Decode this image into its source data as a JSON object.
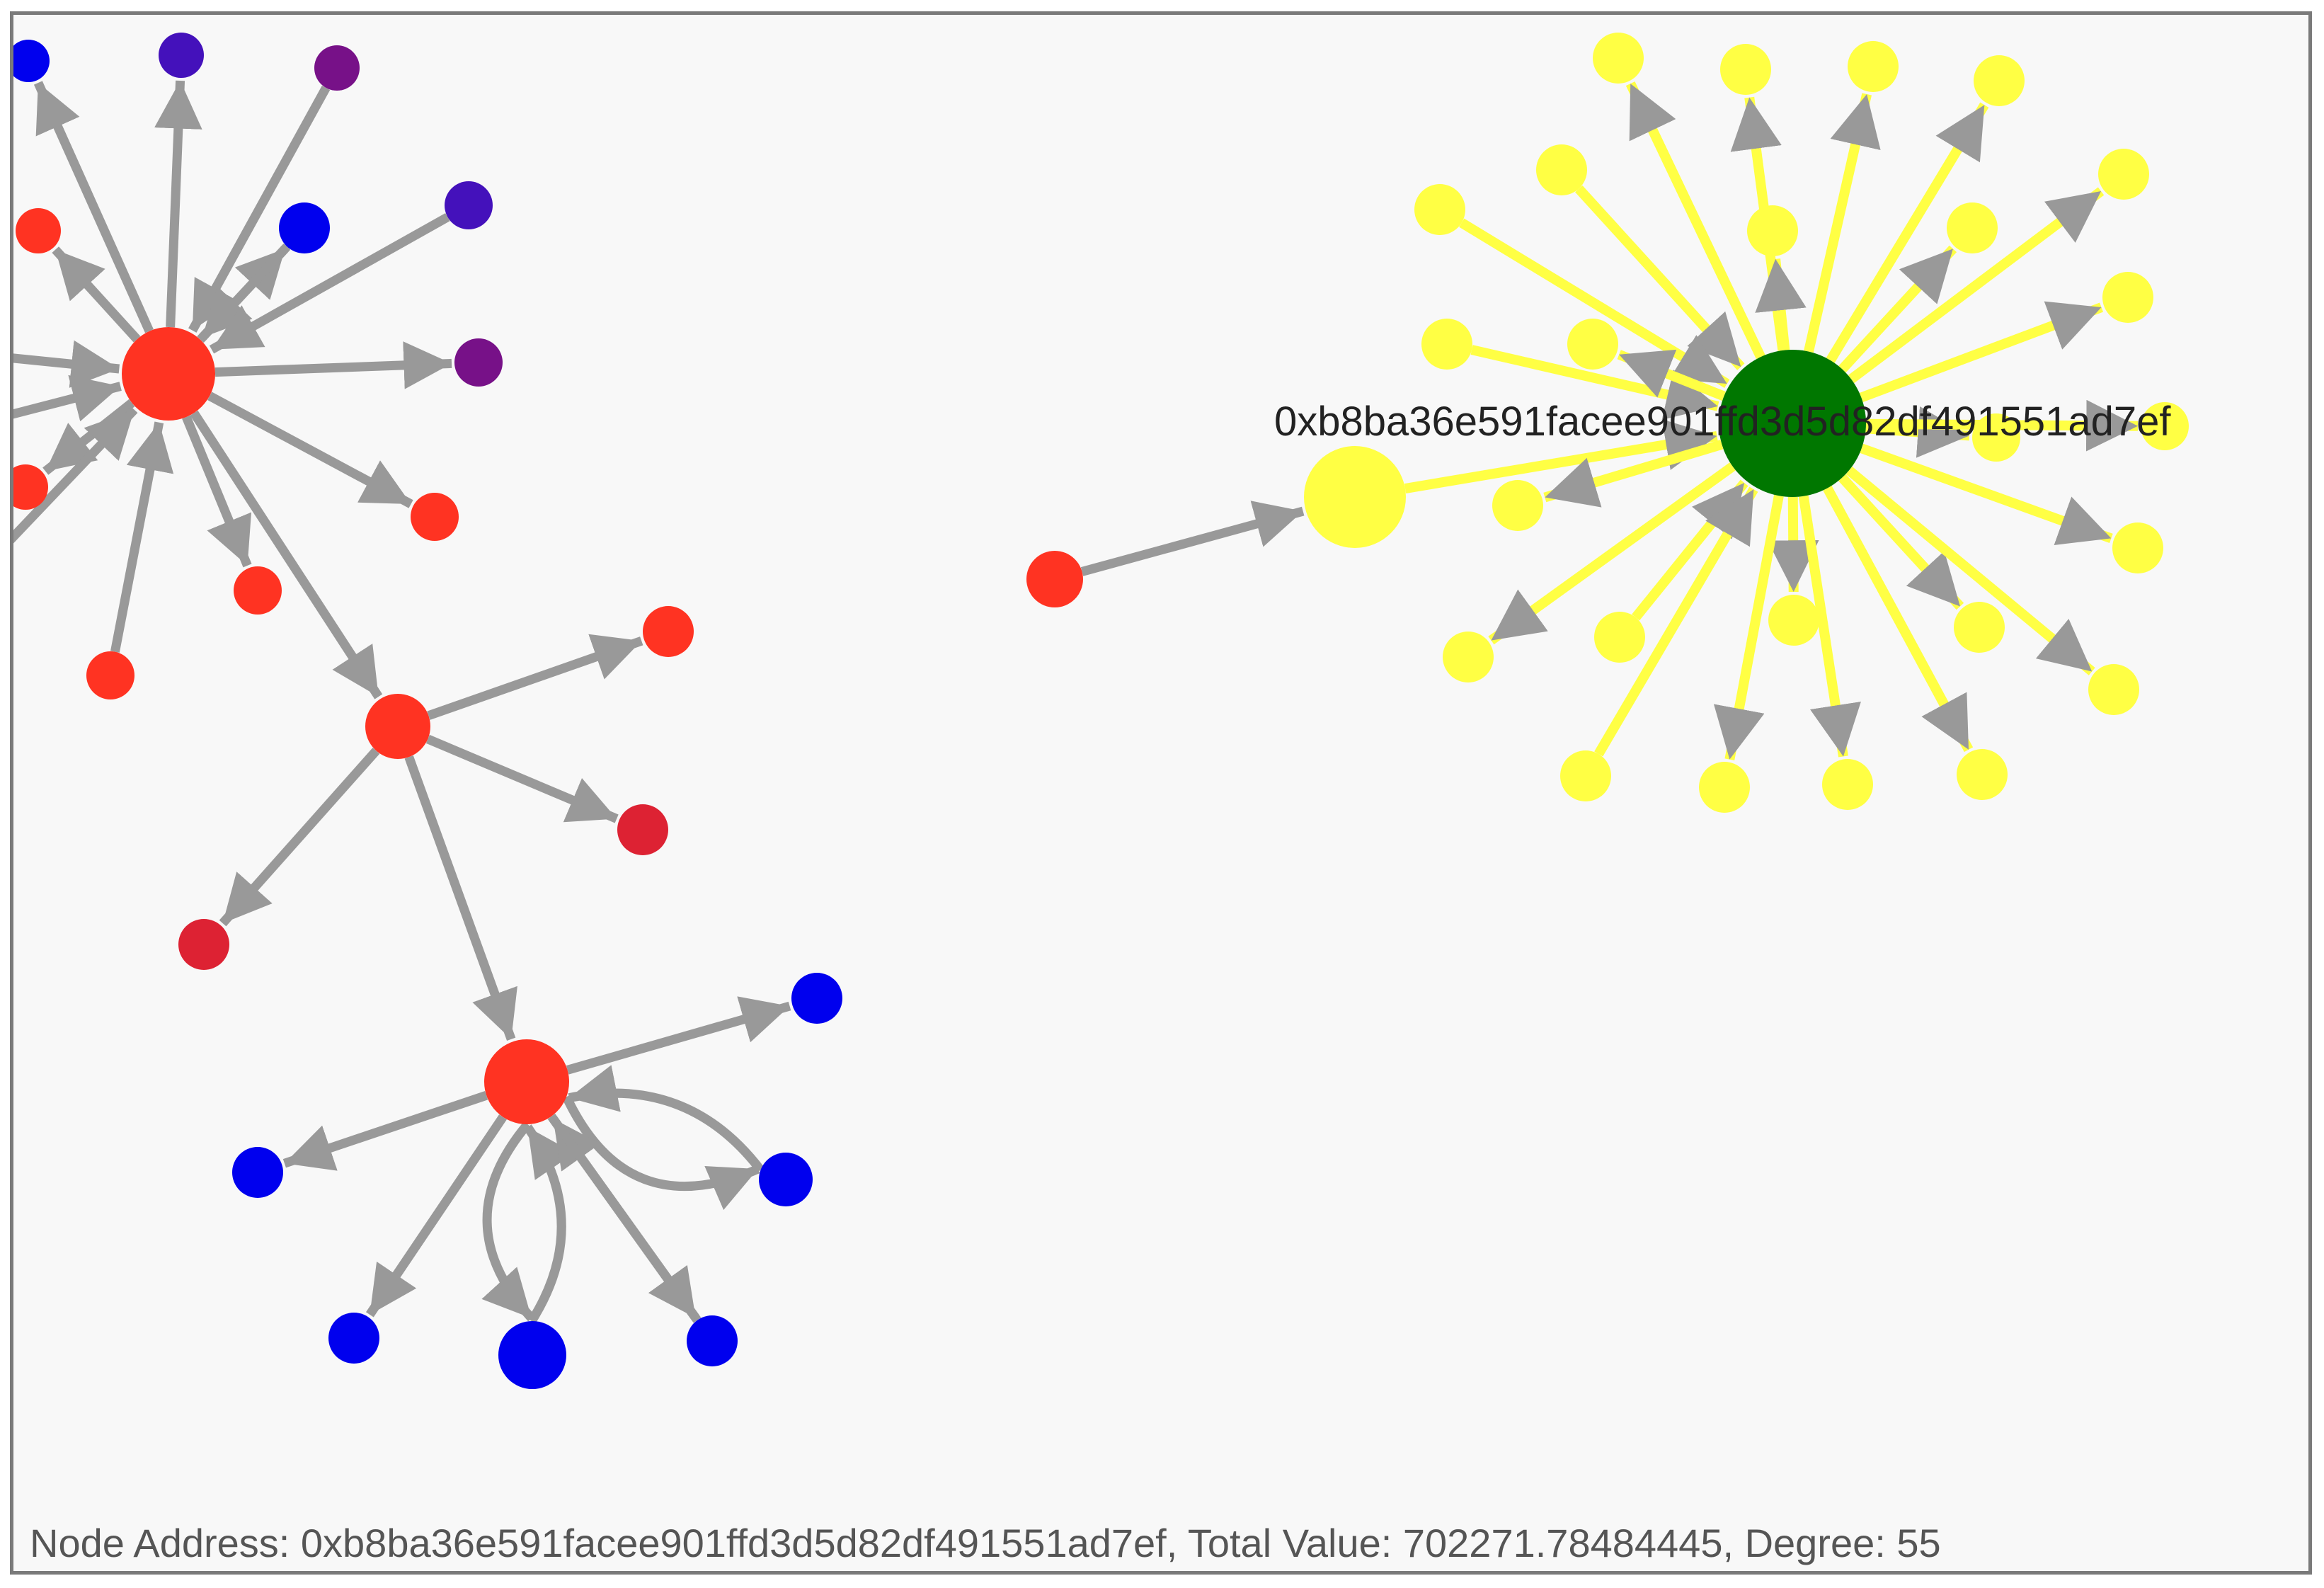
{
  "colors": {
    "edge_gray": "#999999",
    "edge_yellow": "#ffff44",
    "arrowhead": "#999999",
    "node_red": "#ff3322",
    "node_crimson": "#dd2233",
    "node_blue": "#0000ee",
    "node_indigo": "#4411bb",
    "node_purple": "#771188",
    "node_yellow": "#ffff44",
    "node_green": "#007700",
    "background": "#f8f8f8",
    "border": "#7a7a7a",
    "label_text": "#222222"
  },
  "graph": {
    "selected_node_label": "0xb8ba36e591facee901ffd3d5d82df491551ad7ef"
  },
  "status": {
    "text": "Node Address: 0xb8ba36e591facee901ffd3d5d82df491551ad7ef, Total Value: 702271.78484445, Degree: 55"
  }
}
